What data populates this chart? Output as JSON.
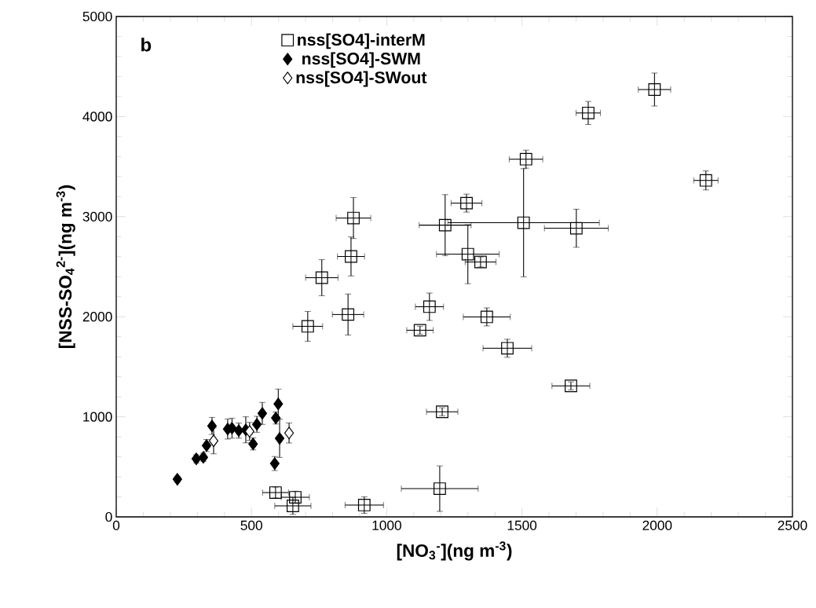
{
  "chart_data": {
    "type": "scatter",
    "xlabel": "[NO$_{3}$$^{-}$](ng m$^{-3}$)",
    "ylabel": "[NSS-SO$_{4}$$^{2-}$](ng m$^{-3}$)",
    "annotations": [
      "b"
    ],
    "xlim": [
      0,
      2500
    ],
    "xticks": [
      0,
      500,
      1000,
      1500,
      2000,
      2500
    ],
    "ylim": [
      0,
      5000
    ],
    "yticks": [
      0,
      1000,
      2000,
      3000,
      4000,
      5000
    ],
    "grid": false,
    "legend": "top left",
    "series": [
      {
        "name": "nss[SO4]-interM",
        "color": "#000000",
        "marker": "square",
        "x": [
          1990,
          1745,
          2180,
          1701,
          1515,
          1506,
          1216,
          1295,
          1300,
          1347,
          877,
          868,
          857,
          1158,
          1123,
          1370,
          1446,
          1681,
          1205,
          1196,
          917,
          708,
          760,
          589,
          662,
          653
        ],
        "values": [
          4270,
          4036,
          3362,
          2884,
          3574,
          2939,
          2915,
          3135,
          2625,
          2547,
          2986,
          2602,
          2022,
          2100,
          1865,
          1998,
          1685,
          1309,
          1050,
          282,
          118,
          1904,
          2390,
          243,
          196,
          110
        ],
        "xerrors": [
          60,
          45,
          45,
          118,
          62,
          280,
          96,
          57,
          116,
          57,
          64,
          50,
          58,
          52,
          49,
          87,
          90,
          70,
          58,
          142,
          71,
          55,
          60,
          48,
          52,
          67
        ],
        "errors": [
          165,
          115,
          95,
          190,
          90,
          540,
          305,
          90,
          295,
          50,
          205,
          195,
          205,
          137,
          40,
          90,
          90,
          40,
          40,
          227,
          82,
          149,
          180,
          55,
          60,
          85
        ]
      },
      {
        "name": "nss[SO4]-SWM",
        "color": "#000000",
        "marker": "diamond",
        "x": [
          226,
          296,
          322,
          334,
          354,
          412,
          428,
          453,
          479,
          506,
          520,
          540,
          599,
          590,
          604,
          586
        ],
        "values": [
          376,
          580,
          595,
          713,
          909,
          878,
          886,
          862,
          870,
          729,
          925,
          1034,
          1129,
          988,
          784,
          533
        ],
        "errors": [
          30,
          40,
          40,
          60,
          85,
          100,
          100,
          75,
          130,
          60,
          80,
          110,
          148,
          60,
          190,
          70
        ]
      },
      {
        "name": "nss[SO4]-SWout",
        "color": "#ffffff",
        "marker": "diamond",
        "x": [
          360,
          493,
          639
        ],
        "values": [
          760,
          854,
          838
        ],
        "errors": [
          130,
          90,
          100
        ]
      }
    ]
  }
}
